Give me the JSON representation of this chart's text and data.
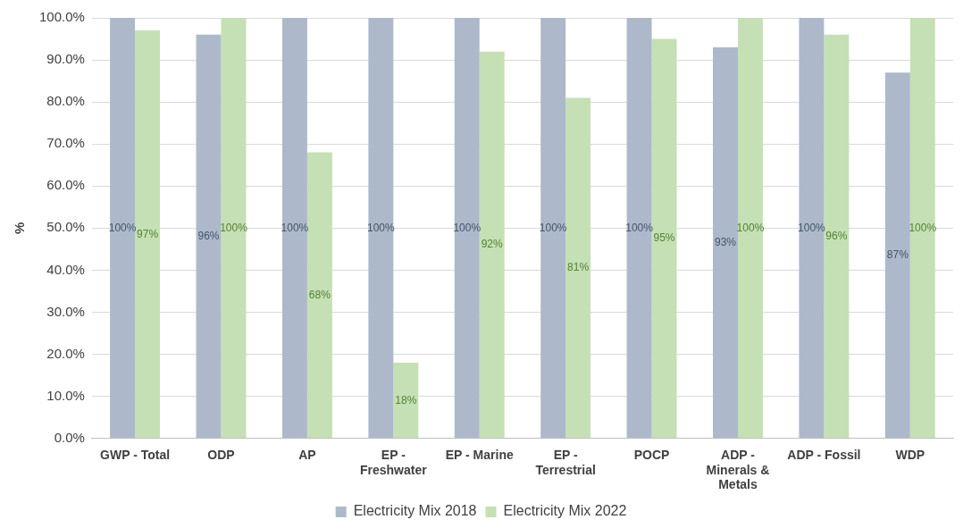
{
  "chart_data": {
    "type": "bar",
    "ylabel": "%",
    "categories": [
      "GWP - Total",
      "ODP",
      "AP",
      "EP - Freshwater",
      "EP - Marine",
      "EP - Terrestrial",
      "POCP",
      "ADP - Minerals & Metals",
      "ADP - Fossil",
      "WDP"
    ],
    "series": [
      {
        "name": "Electricity Mix 2018",
        "color": "#adb9ca",
        "values": [
          100,
          96,
          100,
          100,
          100,
          100,
          100,
          93,
          100,
          87
        ],
        "value_labels": [
          "100%",
          "96%",
          "100%",
          "100%",
          "100%",
          "100%",
          "100%",
          "93%",
          "100%",
          "87%"
        ]
      },
      {
        "name": "Electricity Mix 2022",
        "color": "#c5e0b4",
        "values": [
          97,
          100,
          68,
          18,
          92,
          81,
          95,
          100,
          96,
          100
        ],
        "value_labels": [
          "97%",
          "100%",
          "68%",
          "18%",
          "92%",
          "81%",
          "95%",
          "100%",
          "96%",
          "100%"
        ]
      }
    ],
    "ylim": [
      0,
      100
    ],
    "yticks": [
      {
        "value": 0,
        "label": "0.0%"
      },
      {
        "value": 10,
        "label": "10.0%"
      },
      {
        "value": 20,
        "label": "20.0%"
      },
      {
        "value": 30,
        "label": "30.0%"
      },
      {
        "value": 40,
        "label": "40.0%"
      },
      {
        "value": 50,
        "label": "50.0%"
      },
      {
        "value": 60,
        "label": "60.0%"
      },
      {
        "value": 70,
        "label": "70.0%"
      },
      {
        "value": 80,
        "label": "80.0%"
      },
      {
        "value": 90,
        "label": "90.0%"
      },
      {
        "value": 100,
        "label": "100.0%"
      }
    ],
    "grid": "y",
    "legend": "bottom"
  }
}
